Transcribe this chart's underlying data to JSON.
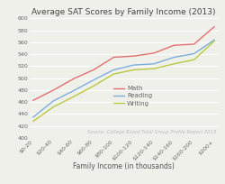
{
  "title": "Average SAT Scores by Family Income (2013)",
  "xlabel": "Family Income (in thousands)",
  "source": "Source: College Board Total Group Profile Report 2013",
  "categories": [
    "$0-20",
    "$20-40",
    "$40-60",
    "$60-80",
    "$80-100",
    "$100-120",
    "$120-140",
    "$140-160",
    "$160-200",
    "$200+"
  ],
  "math": [
    463,
    480,
    499,
    514,
    535,
    537,
    542,
    555,
    557,
    586
  ],
  "reading": [
    435,
    462,
    479,
    497,
    514,
    522,
    524,
    535,
    541,
    564
  ],
  "writing": [
    428,
    452,
    469,
    487,
    507,
    514,
    516,
    524,
    531,
    562
  ],
  "math_color": "#e07070",
  "reading_color": "#7aaedc",
  "writing_color": "#b8c840",
  "bg_color": "#f0f0ea",
  "plot_bg": "#f0f0ea",
  "grid_color": "#ffffff",
  "ylim": [
    400,
    600
  ],
  "yticks": [
    400,
    420,
    440,
    460,
    480,
    500,
    520,
    540,
    560,
    580,
    600
  ],
  "title_fontsize": 6.5,
  "axis_label_fontsize": 5.5,
  "tick_fontsize": 4.5,
  "legend_fontsize": 5.0,
  "source_fontsize": 3.8,
  "line_width": 1.0
}
